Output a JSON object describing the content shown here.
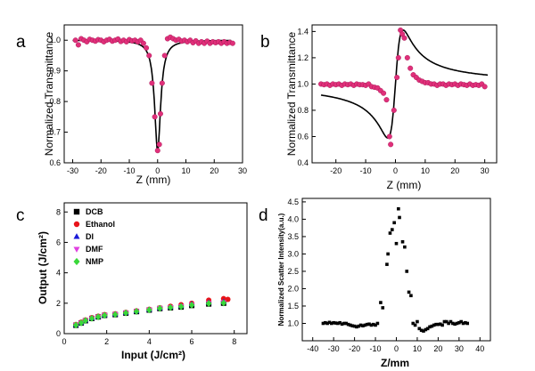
{
  "panels": [
    {
      "letter": "a",
      "type": "scatter+line",
      "xlabel": "Z (mm)",
      "ylabel": "Normalized Transmittance",
      "xlim": [
        -33,
        30
      ],
      "ylim": [
        0.6,
        1.05
      ],
      "xticks": [
        -30,
        -20,
        -10,
        0,
        10,
        20,
        30
      ],
      "yticks": [
        0.6,
        0.7,
        0.8,
        0.9,
        1.0
      ],
      "tick_decimals": 1,
      "marker_color": "#e0307a",
      "line_color": "#000000",
      "points": [
        [
          -29,
          1.0
        ],
        [
          -28,
          0.985
        ],
        [
          -27,
          1.005
        ],
        [
          -26,
          1.0
        ],
        [
          -25,
          0.995
        ],
        [
          -24,
          1.003
        ],
        [
          -23,
          1.0
        ],
        [
          -22,
          0.997
        ],
        [
          -21,
          1.002
        ],
        [
          -20,
          1.0
        ],
        [
          -19,
          0.995
        ],
        [
          -18,
          1.0
        ],
        [
          -17,
          1.003
        ],
        [
          -16,
          0.997
        ],
        [
          -15,
          1.0
        ],
        [
          -14,
          1.004
        ],
        [
          -13,
          0.996
        ],
        [
          -12,
          1.0
        ],
        [
          -11,
          0.995
        ],
        [
          -10,
          1.002
        ],
        [
          -9,
          0.998
        ],
        [
          -8,
          1.0
        ],
        [
          -7,
          0.995
        ],
        [
          -6,
          1.0
        ],
        [
          -5,
          0.99
        ],
        [
          -4,
          0.975
        ],
        [
          -3,
          0.95
        ],
        [
          -2,
          0.86
        ],
        [
          -1,
          0.75
        ],
        [
          0,
          0.64
        ],
        [
          0.6,
          0.66
        ],
        [
          1,
          0.76
        ],
        [
          1.6,
          0.86
        ],
        [
          2.5,
          0.95
        ],
        [
          3.5,
          1.005
        ],
        [
          4.5,
          1.01
        ],
        [
          5.5,
          1.005
        ],
        [
          6.5,
          1.0
        ],
        [
          7.5,
          1.003
        ],
        [
          8.5,
          0.997
        ],
        [
          9.5,
          1.0
        ],
        [
          10.5,
          0.995
        ],
        [
          11.5,
          1.0
        ],
        [
          12.5,
          0.992
        ],
        [
          13.5,
          0.998
        ],
        [
          14.5,
          0.99
        ],
        [
          15.5,
          0.995
        ],
        [
          16.5,
          0.99
        ],
        [
          17.5,
          0.997
        ],
        [
          18.5,
          0.99
        ],
        [
          19.5,
          0.995
        ],
        [
          20.5,
          0.992
        ],
        [
          21.5,
          0.995
        ],
        [
          22.5,
          0.99
        ],
        [
          23.5,
          0.995
        ],
        [
          24.5,
          0.99
        ],
        [
          25.5,
          0.993
        ],
        [
          26.5,
          0.99
        ]
      ],
      "fit": {
        "kind": "dip",
        "x_range": [
          -30,
          26
        ],
        "base": 1.0,
        "depth": 0.36,
        "width": 1.3
      }
    },
    {
      "letter": "b",
      "type": "scatter+line",
      "xlabel": "Z (mm)",
      "ylabel": "Normalized Transmittance",
      "xlim": [
        -28,
        34
      ],
      "ylim": [
        0.4,
        1.45
      ],
      "xticks": [
        -20,
        -10,
        0,
        10,
        20,
        30
      ],
      "yticks": [
        0.4,
        0.6,
        0.8,
        1.0,
        1.2,
        1.4
      ],
      "tick_decimals": 1,
      "marker_color": "#e0307a",
      "line_color": "#000000",
      "points": [
        [
          -25,
          1.0
        ],
        [
          -24,
          0.995
        ],
        [
          -23,
          1.0
        ],
        [
          -22,
          0.99
        ],
        [
          -21,
          1.0
        ],
        [
          -20,
          0.995
        ],
        [
          -19,
          1.0
        ],
        [
          -18,
          0.99
        ],
        [
          -17,
          1.0
        ],
        [
          -16,
          0.995
        ],
        [
          -15,
          1.0
        ],
        [
          -14,
          0.99
        ],
        [
          -13,
          1.0
        ],
        [
          -12,
          0.995
        ],
        [
          -11,
          0.995
        ],
        [
          -10,
          0.99
        ],
        [
          -9,
          1.0
        ],
        [
          -8,
          0.98
        ],
        [
          -7,
          0.975
        ],
        [
          -6,
          0.97
        ],
        [
          -5,
          0.95
        ],
        [
          -4,
          0.93
        ],
        [
          -3,
          0.88
        ],
        [
          -2,
          0.6
        ],
        [
          -1.6,
          0.54
        ],
        [
          -0.5,
          0.8
        ],
        [
          0.5,
          1.05
        ],
        [
          1,
          1.2
        ],
        [
          1.7,
          1.41
        ],
        [
          2.3,
          1.38
        ],
        [
          3,
          1.35
        ],
        [
          4,
          1.2
        ],
        [
          5,
          1.12
        ],
        [
          6,
          1.07
        ],
        [
          7,
          1.05
        ],
        [
          8,
          1.03
        ],
        [
          9,
          1.02
        ],
        [
          10,
          1.01
        ],
        [
          11,
          1.01
        ],
        [
          12,
          1.0
        ],
        [
          13,
          1.0
        ],
        [
          14,
          0.99
        ],
        [
          15,
          1.0
        ],
        [
          16,
          1.0
        ],
        [
          17,
          0.99
        ],
        [
          18,
          1.0
        ],
        [
          19,
          0.995
        ],
        [
          20,
          1.0
        ],
        [
          21,
          0.99
        ],
        [
          22,
          1.0
        ],
        [
          23,
          0.995
        ],
        [
          24,
          0.99
        ],
        [
          25,
          1.0
        ],
        [
          26,
          0.99
        ],
        [
          27,
          0.995
        ],
        [
          28,
          0.99
        ],
        [
          29,
          1.0
        ],
        [
          30,
          0.98
        ]
      ],
      "fit": {
        "kind": "peakvalley",
        "x_range": [
          -25,
          31
        ],
        "base": 1.0,
        "amp": 1.15,
        "width": 2.6
      }
    },
    {
      "letter": "c",
      "type": "scatter",
      "xlabel": "Input (J/cm²)",
      "ylabel": "Output (J/cm²)",
      "xlim": [
        0,
        8.6
      ],
      "ylim": [
        0,
        8.6
      ],
      "xticks": [
        0,
        2,
        4,
        6,
        8
      ],
      "yticks": [
        0,
        2,
        4,
        6,
        8
      ],
      "tick_decimals": 0,
      "legend_position": "top-left",
      "series": [
        {
          "name": "DCB",
          "marker": "square",
          "color": "#000000",
          "points": [
            [
              0.55,
              0.55
            ],
            [
              0.8,
              0.7
            ],
            [
              1.0,
              0.85
            ],
            [
              1.3,
              1.0
            ],
            [
              1.6,
              1.1
            ],
            [
              1.9,
              1.2
            ],
            [
              2.4,
              1.25
            ],
            [
              2.9,
              1.35
            ],
            [
              3.4,
              1.45
            ],
            [
              4.0,
              1.55
            ],
            [
              4.5,
              1.65
            ],
            [
              5.0,
              1.7
            ],
            [
              5.5,
              1.75
            ],
            [
              6.0,
              1.85
            ],
            [
              6.8,
              1.95
            ],
            [
              7.5,
              2.0
            ]
          ]
        },
        {
          "name": "Ethanol",
          "marker": "circle",
          "color": "#e8141a",
          "points": [
            [
              0.55,
              0.6
            ],
            [
              0.8,
              0.75
            ],
            [
              1.0,
              0.9
            ],
            [
              1.3,
              1.05
            ],
            [
              1.6,
              1.15
            ],
            [
              1.9,
              1.25
            ],
            [
              2.4,
              1.3
            ],
            [
              2.9,
              1.4
            ],
            [
              3.4,
              1.5
            ],
            [
              4.0,
              1.6
            ],
            [
              4.5,
              1.7
            ],
            [
              5.0,
              1.8
            ],
            [
              5.5,
              1.9
            ],
            [
              6.0,
              2.0
            ],
            [
              6.8,
              2.2
            ],
            [
              7.5,
              2.3
            ],
            [
              7.7,
              2.25
            ]
          ]
        },
        {
          "name": "DI",
          "marker": "triangle-up",
          "color": "#1a1ad8",
          "points": [
            [
              0.55,
              0.58
            ],
            [
              0.8,
              0.72
            ],
            [
              1.0,
              0.88
            ],
            [
              1.3,
              1.02
            ],
            [
              1.6,
              1.12
            ],
            [
              1.9,
              1.22
            ],
            [
              2.4,
              1.28
            ],
            [
              2.9,
              1.38
            ],
            [
              3.4,
              1.48
            ],
            [
              4.0,
              1.58
            ],
            [
              4.5,
              1.68
            ],
            [
              5.0,
              1.75
            ],
            [
              5.5,
              1.82
            ],
            [
              6.0,
              1.95
            ],
            [
              6.8,
              2.05
            ],
            [
              7.5,
              2.1
            ]
          ]
        },
        {
          "name": "DMF",
          "marker": "triangle-down",
          "color": "#e040e0",
          "points": [
            [
              0.55,
              0.57
            ],
            [
              0.8,
              0.71
            ],
            [
              1.0,
              0.87
            ],
            [
              1.3,
              1.01
            ],
            [
              1.6,
              1.11
            ],
            [
              1.9,
              1.21
            ],
            [
              2.4,
              1.27
            ],
            [
              2.9,
              1.37
            ],
            [
              3.4,
              1.47
            ],
            [
              4.0,
              1.57
            ],
            [
              4.5,
              1.67
            ],
            [
              5.0,
              1.73
            ],
            [
              5.5,
              1.8
            ],
            [
              6.0,
              1.9
            ],
            [
              6.8,
              2.0
            ],
            [
              7.5,
              2.05
            ]
          ]
        },
        {
          "name": "NMP",
          "marker": "diamond",
          "color": "#3ad83a",
          "points": [
            [
              0.55,
              0.56
            ],
            [
              0.8,
              0.7
            ],
            [
              1.0,
              0.86
            ],
            [
              1.3,
              1.0
            ],
            [
              1.6,
              1.1
            ],
            [
              1.9,
              1.2
            ],
            [
              2.4,
              1.26
            ],
            [
              2.9,
              1.36
            ],
            [
              3.4,
              1.46
            ],
            [
              4.0,
              1.56
            ],
            [
              4.5,
              1.66
            ],
            [
              5.0,
              1.72
            ],
            [
              5.5,
              1.78
            ],
            [
              6.0,
              1.88
            ],
            [
              6.8,
              1.98
            ],
            [
              7.5,
              2.02
            ]
          ]
        }
      ]
    },
    {
      "letter": "d",
      "type": "scatter",
      "xlabel": "Z/mm",
      "ylabel": "Normalized Scatter Intensity(a.u.)",
      "xlim": [
        -45,
        45
      ],
      "ylim": [
        0.5,
        4.6
      ],
      "xticks": [
        -40,
        -30,
        -20,
        -10,
        0,
        10,
        20,
        30,
        40
      ],
      "yticks": [
        1.0,
        1.5,
        2.0,
        2.5,
        3.0,
        3.5,
        4.0,
        4.5
      ],
      "tick_decimals": 1,
      "marker_color": "#000000",
      "points": [
        [
          -35,
          1.0
        ],
        [
          -34,
          1.02
        ],
        [
          -33,
          1.0
        ],
        [
          -32,
          1.03
        ],
        [
          -31,
          1.0
        ],
        [
          -30,
          1.02
        ],
        [
          -29,
          1.01
        ],
        [
          -28,
          1.0
        ],
        [
          -27,
          1.02
        ],
        [
          -26,
          0.98
        ],
        [
          -25,
          1.0
        ],
        [
          -24,
          1.0
        ],
        [
          -23,
          0.97
        ],
        [
          -22,
          0.95
        ],
        [
          -21,
          0.93
        ],
        [
          -20,
          0.92
        ],
        [
          -19,
          0.9
        ],
        [
          -18,
          0.92
        ],
        [
          -17,
          0.95
        ],
        [
          -16,
          0.93
        ],
        [
          -15,
          0.95
        ],
        [
          -14,
          0.97
        ],
        [
          -13,
          0.98
        ],
        [
          -12,
          0.95
        ],
        [
          -11,
          0.97
        ],
        [
          -10,
          0.95
        ],
        [
          -9,
          1.0
        ],
        [
          -7.5,
          1.6
        ],
        [
          -6.5,
          1.45
        ],
        [
          -4.5,
          2.7
        ],
        [
          -4,
          3.0
        ],
        [
          -3,
          3.6
        ],
        [
          -2,
          3.7
        ],
        [
          -1,
          3.9
        ],
        [
          0,
          3.3
        ],
        [
          1,
          4.3
        ],
        [
          1.5,
          4.05
        ],
        [
          3,
          3.35
        ],
        [
          4,
          3.2
        ],
        [
          5,
          2.5
        ],
        [
          6,
          1.9
        ],
        [
          7,
          1.8
        ],
        [
          8,
          1.0
        ],
        [
          9,
          0.95
        ],
        [
          10,
          1.05
        ],
        [
          11,
          0.85
        ],
        [
          12,
          0.8
        ],
        [
          13,
          0.78
        ],
        [
          14,
          0.82
        ],
        [
          15,
          0.85
        ],
        [
          16,
          0.9
        ],
        [
          17,
          0.92
        ],
        [
          18,
          0.95
        ],
        [
          19,
          0.97
        ],
        [
          20,
          0.97
        ],
        [
          21,
          0.98
        ],
        [
          22,
          0.95
        ],
        [
          23,
          1.05
        ],
        [
          24,
          1.05
        ],
        [
          25,
          1.0
        ],
        [
          26,
          1.05
        ],
        [
          27,
          1.0
        ],
        [
          28,
          0.98
        ],
        [
          29,
          1.0
        ],
        [
          30,
          1.02
        ],
        [
          31,
          1.05
        ],
        [
          32,
          1.0
        ],
        [
          33,
          1.02
        ],
        [
          34,
          1.0
        ]
      ]
    }
  ]
}
